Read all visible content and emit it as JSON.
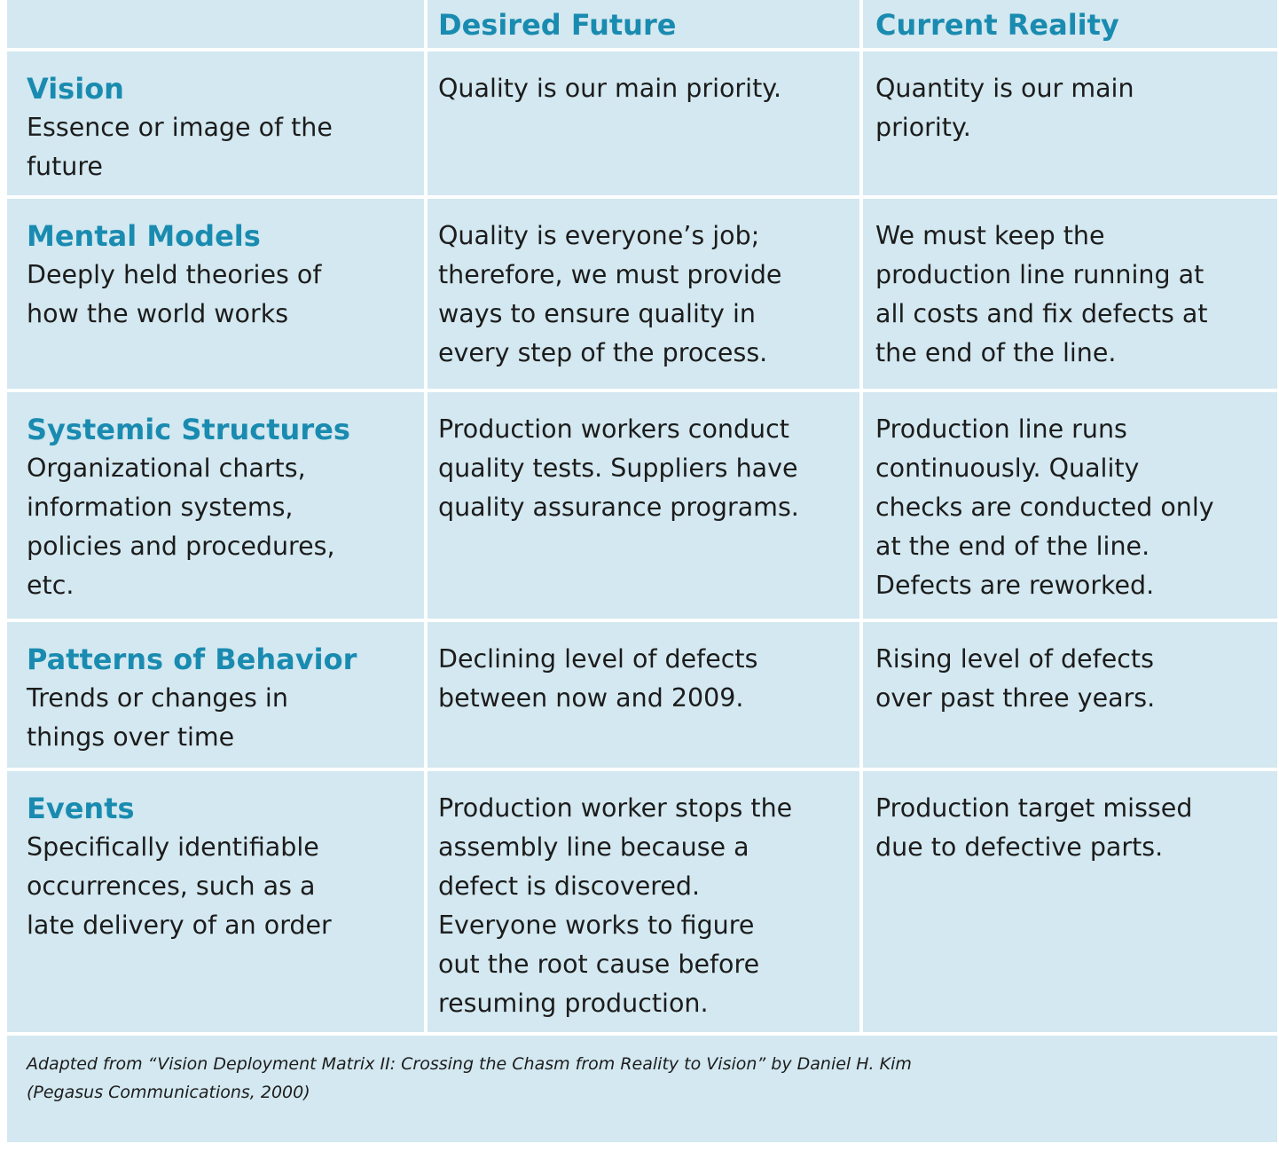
{
  "header": {
    "columns": [
      "Desired Future",
      "Current Reality"
    ]
  },
  "rows": [
    {
      "title": "Vision",
      "description": [
        "Essence or image of the",
        "future"
      ],
      "desired": [
        "Quality is our main priority."
      ],
      "current": [
        "Quantity is our main",
        "priority."
      ]
    },
    {
      "title": "Mental Models",
      "description": [
        "Deeply held theories of",
        "how the world works"
      ],
      "desired": [
        "Quality is everyone’s job;",
        "therefore, we must provide",
        "ways to ensure quality in",
        "every step of the process."
      ],
      "current": [
        "We must keep the",
        "production line running at",
        "all costs and fix defects at",
        "the end of the line."
      ]
    },
    {
      "title": "Systemic Structures",
      "description": [
        "Organizational charts,",
        "information systems,",
        "policies and procedures,",
        "etc."
      ],
      "desired": [
        "Production workers conduct",
        "quality tests. Suppliers have",
        "quality assurance programs."
      ],
      "current": [
        "Production line runs",
        "continuously. Quality",
        "checks are conducted only",
        "at the end of the line.",
        "Defects are reworked."
      ]
    },
    {
      "title": "Patterns of Behavior",
      "description": [
        "Trends or changes in",
        "things over time"
      ],
      "desired": [
        "Declining level of defects",
        "between now and 2009."
      ],
      "current": [
        "Rising level of defects",
        "over past three years."
      ]
    },
    {
      "title": "Events",
      "description": [
        "Specifically identifiable",
        "occurrences, such as a",
        "late delivery of an order"
      ],
      "desired": [
        "Production worker stops the",
        "assembly line because a",
        "defect is discovered.",
        "Everyone works to figure",
        "out the root cause before",
        "resuming production."
      ],
      "current": [
        "Production target missed",
        "due to defective parts."
      ]
    }
  ],
  "footnote": [
    "Adapted from “Vision Deployment Matrix II: Crossing the Chasm from Reality to Vision” by Daniel H. Kim",
    "(Pegasus Communications, 2000)"
  ]
}
